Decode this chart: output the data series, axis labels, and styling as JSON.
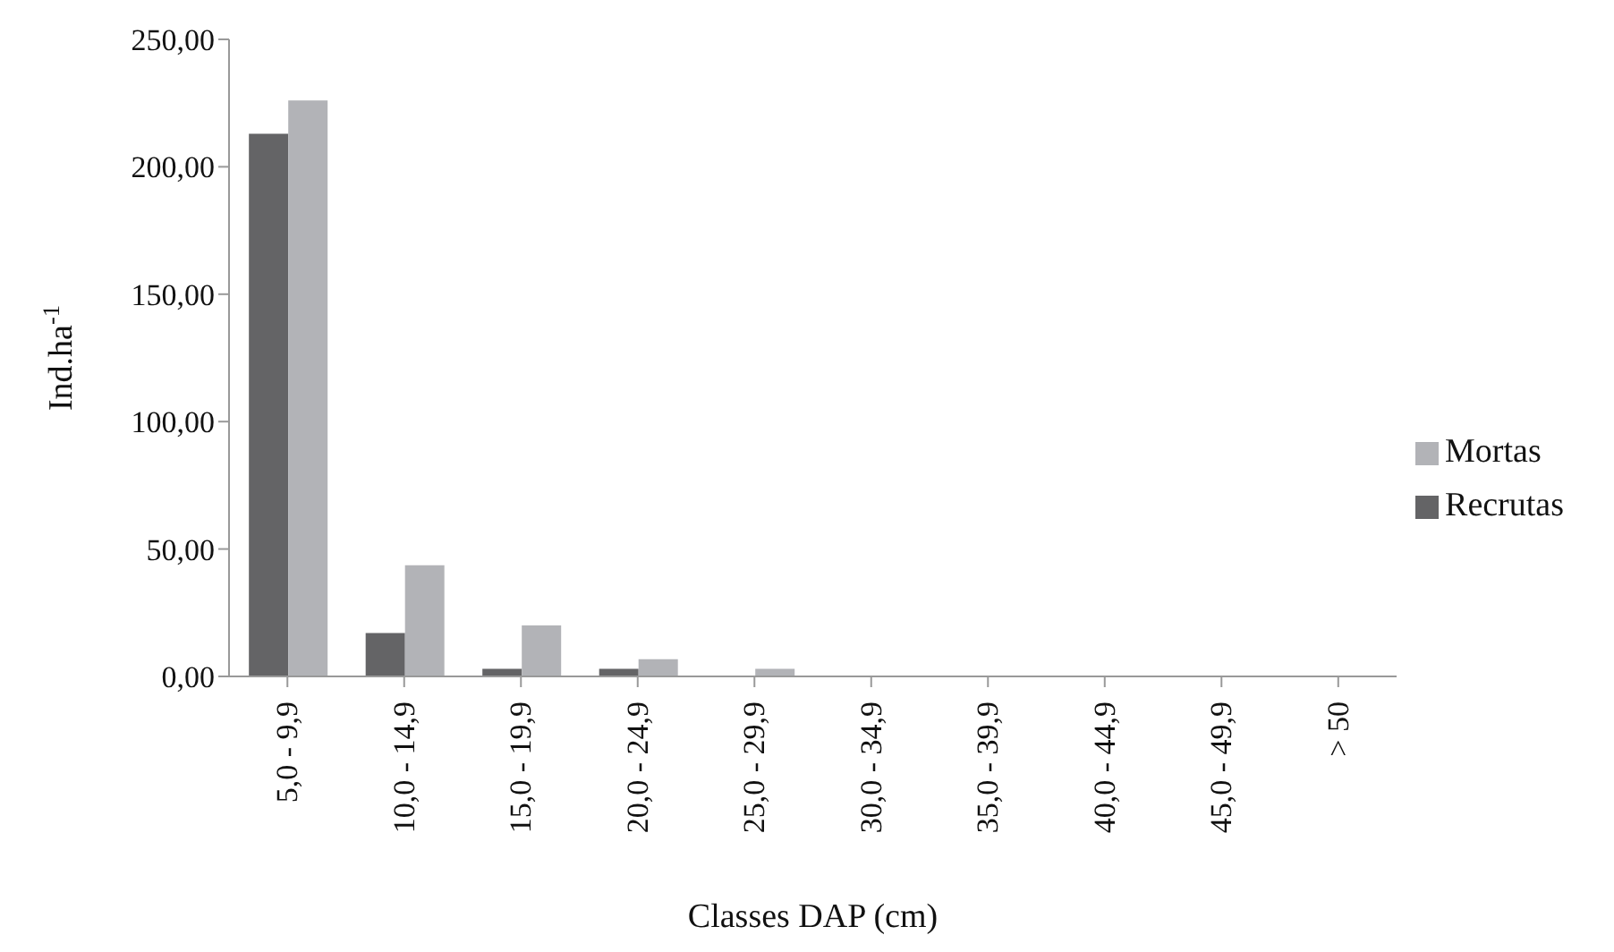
{
  "chart_data": {
    "type": "bar",
    "xlabel": "Classes DAP (cm)",
    "ylabel": "Ind.ha$^{-1}$",
    "categories": [
      "5,0 - 9,9",
      "10,0 - 14,9",
      "15,0 - 19,9",
      "20,0 - 24,9",
      "25,0 - 29,9",
      "30,0 - 34,9",
      "35,0 - 39,9",
      "40,0 - 44,9",
      "45,0 - 49,9",
      "> 50"
    ],
    "series": [
      {
        "name": "Recrutas",
        "color": "#646466",
        "values": [
          213,
          17,
          3,
          3,
          0,
          0,
          0,
          0,
          0,
          0
        ]
      },
      {
        "name": "Mortas",
        "color": "#b2b3b7",
        "values": [
          226,
          43.6,
          20,
          6.8,
          3,
          0,
          0,
          0,
          0,
          0
        ]
      }
    ],
    "ylim": [
      0,
      250
    ],
    "yticks": [
      {
        "value": 0,
        "label": "0,00"
      },
      {
        "value": 50,
        "label": "50,00"
      },
      {
        "value": 100,
        "label": "100,00"
      },
      {
        "value": 150,
        "label": "150,00"
      },
      {
        "value": 200,
        "label": "200,00"
      },
      {
        "value": 250,
        "label": "250,00"
      }
    ],
    "grid": false,
    "legend": "right"
  }
}
